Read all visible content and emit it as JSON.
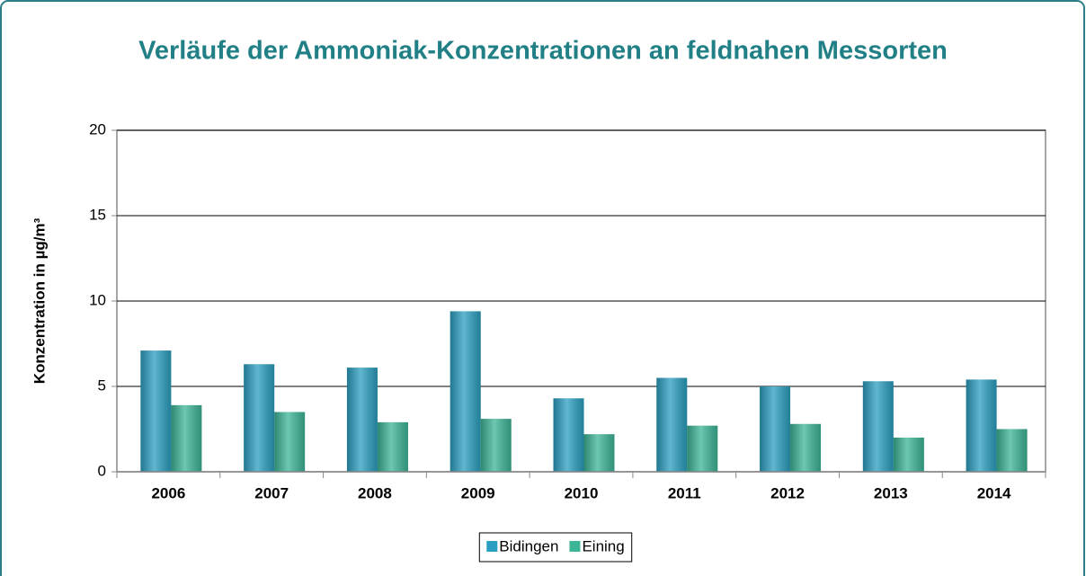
{
  "chart_data": {
    "type": "bar",
    "title": "Verläufe der Ammoniak-Konzentrationen an feldnahen Messorten",
    "ylabel": "Konzentration in µg/m³",
    "categories": [
      "2006",
      "2007",
      "2008",
      "2009",
      "2010",
      "2011",
      "2012",
      "2013",
      "2014"
    ],
    "series": [
      {
        "name": "Bidingen",
        "color": "#2b9fbf",
        "values": [
          7.1,
          6.3,
          6.1,
          9.4,
          4.3,
          5.5,
          5.0,
          5.3,
          5.4
        ]
      },
      {
        "name": "Eining",
        "color": "#3db597",
        "values": [
          3.9,
          3.5,
          2.9,
          3.1,
          2.2,
          2.7,
          2.8,
          2.0,
          2.5
        ]
      }
    ],
    "ylim": [
      0,
      20
    ],
    "yticks": [
      0,
      5,
      10,
      15,
      20
    ],
    "grid": true,
    "legend": "bottom"
  }
}
